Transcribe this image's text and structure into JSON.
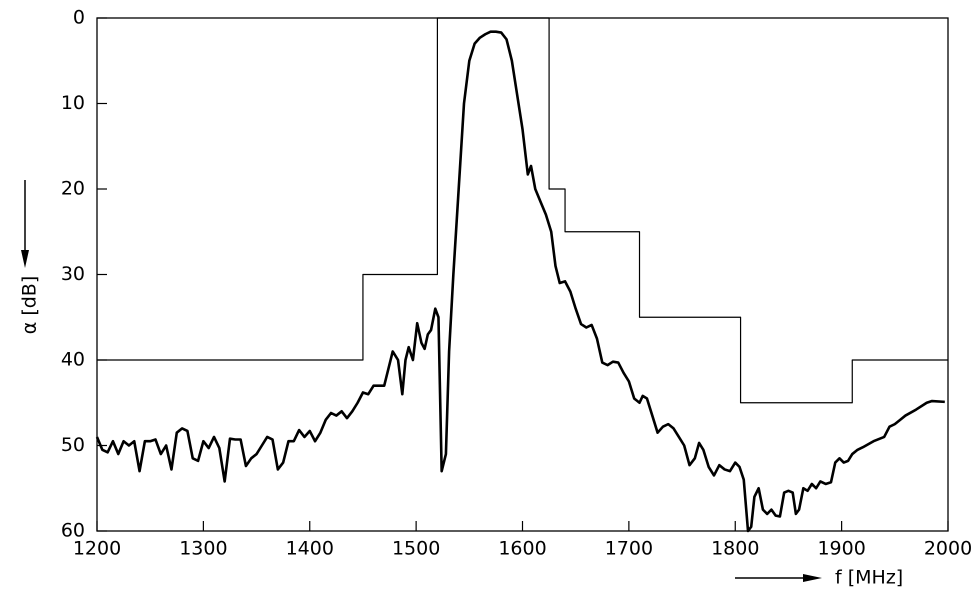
{
  "chart_data": {
    "type": "line",
    "y_label": "α  [dB]",
    "x_label": "f  [MHz]",
    "xlim": [
      1200,
      2000
    ],
    "xticks": [
      1200,
      1300,
      1400,
      1500,
      1600,
      1700,
      1800,
      1900,
      2000
    ],
    "ylim": [
      0,
      60
    ],
    "yticks": [
      0,
      10,
      20,
      30,
      40,
      50,
      60
    ],
    "invert_y": true,
    "grid": false,
    "series": [
      {
        "color": "#000000",
        "width": 1.2,
        "x": [
          1200,
          1450,
          1450,
          1520,
          1520,
          1625,
          1625,
          1640,
          1640,
          1710,
          1710,
          1805,
          1805,
          1910,
          1910,
          2000
        ],
        "values": [
          40,
          40,
          30,
          30,
          0,
          0,
          20,
          20,
          25,
          25,
          35,
          35,
          45,
          45,
          40,
          40
        ]
      },
      {
        "color": "#000000",
        "width": 2.6,
        "x": [
          1200,
          1205,
          1210,
          1215,
          1220,
          1225,
          1230,
          1235,
          1240,
          1245,
          1250,
          1255,
          1260,
          1265,
          1270,
          1275,
          1280,
          1285,
          1290,
          1295,
          1300,
          1305,
          1310,
          1315,
          1320,
          1325,
          1330,
          1335,
          1340,
          1345,
          1350,
          1355,
          1360,
          1365,
          1370,
          1375,
          1380,
          1385,
          1390,
          1395,
          1400,
          1405,
          1410,
          1415,
          1420,
          1425,
          1430,
          1435,
          1440,
          1445,
          1450,
          1455,
          1460,
          1470,
          1478,
          1483,
          1487,
          1490,
          1493,
          1497,
          1501,
          1505,
          1508,
          1511,
          1514,
          1518,
          1521,
          1524,
          1528,
          1531,
          1535,
          1540,
          1545,
          1550,
          1555,
          1560,
          1565,
          1570,
          1575,
          1580,
          1585,
          1590,
          1595,
          1600,
          1605,
          1608,
          1612,
          1617,
          1622,
          1627,
          1631,
          1635,
          1640,
          1645,
          1650,
          1655,
          1660,
          1665,
          1670,
          1675,
          1680,
          1685,
          1690,
          1695,
          1700,
          1705,
          1710,
          1713,
          1717,
          1722,
          1727,
          1732,
          1737,
          1742,
          1747,
          1752,
          1757,
          1762,
          1766,
          1770,
          1775,
          1780,
          1785,
          1790,
          1795,
          1800,
          1804,
          1808,
          1812,
          1815,
          1818,
          1822,
          1826,
          1830,
          1834,
          1838,
          1842,
          1846,
          1850,
          1854,
          1857,
          1860,
          1864,
          1868,
          1872,
          1876,
          1880,
          1885,
          1890,
          1894,
          1898,
          1902,
          1906,
          1910,
          1915,
          1920,
          1930,
          1940,
          1945,
          1950,
          1955,
          1960,
          1970,
          1980,
          1985,
          1997
        ],
        "values": [
          49,
          50.5,
          50.8,
          49.5,
          51,
          49.5,
          50,
          49.5,
          53,
          49.5,
          49.5,
          49.3,
          51,
          50,
          52.8,
          48.5,
          48,
          48.3,
          51.5,
          51.8,
          49.5,
          50.3,
          49,
          50.3,
          54.2,
          49.2,
          49.3,
          49.3,
          52.4,
          51.5,
          51,
          50,
          49,
          49.3,
          52.8,
          52,
          49.5,
          49.5,
          48.2,
          49,
          48.3,
          49.5,
          48.5,
          47,
          46.2,
          46.5,
          46,
          46.8,
          46,
          45,
          43.8,
          44,
          43,
          43,
          39,
          40,
          44,
          40,
          38.5,
          40,
          35.7,
          38,
          38.7,
          37,
          36.5,
          34,
          35,
          53,
          51,
          39,
          30,
          20,
          10,
          5,
          3,
          2.3,
          1.9,
          1.6,
          1.6,
          1.7,
          2.5,
          5,
          9,
          13,
          18.3,
          17.3,
          20,
          21.5,
          23,
          25,
          29,
          31,
          30.8,
          32,
          34,
          35.8,
          36.2,
          35.9,
          37.5,
          40.3,
          40.6,
          40.2,
          40.3,
          41.5,
          42.5,
          44.5,
          45,
          44.2,
          44.5,
          46.5,
          48.5,
          47.8,
          47.5,
          48,
          49,
          50,
          52.3,
          51.5,
          49.7,
          50.5,
          52.5,
          53.5,
          52.3,
          52.8,
          53,
          52,
          52.5,
          54,
          60,
          59.5,
          56,
          55,
          57.5,
          58,
          57.5,
          58.2,
          58.3,
          55.5,
          55.3,
          55.5,
          58,
          57.5,
          55,
          55.3,
          54.5,
          55,
          54.2,
          54.5,
          54.3,
          52,
          51.5,
          52,
          51.8,
          51,
          50.5,
          50.2,
          49.5,
          49,
          47.8,
          47.5,
          47,
          46.5,
          45.8,
          45,
          44.8,
          44.9
        ]
      }
    ]
  }
}
